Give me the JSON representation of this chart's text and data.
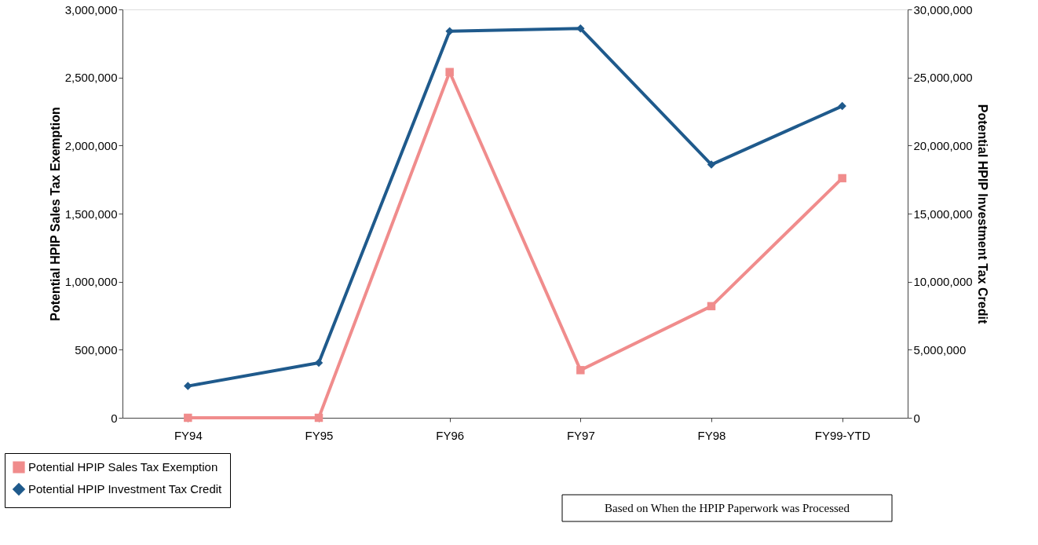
{
  "chart_data": {
    "type": "line",
    "categories": [
      "FY94",
      "FY95",
      "FY96",
      "FY97",
      "FY98",
      "FY99-YTD"
    ],
    "ylabel": "Potential HPIP Sales Tax Exemption",
    "y2label": "Potential HPIP Investment Tax Credit",
    "ylim": [
      0,
      3000000
    ],
    "yticks": [
      0,
      {
        "value": 500000,
        "label": "500,000"
      },
      {
        "value": 1000000,
        "label": "1,000,000"
      },
      {
        "value": 1500000,
        "label": "1,500,000"
      },
      {
        "value": 2000000,
        "label": "2,000,000"
      },
      {
        "value": 2500000,
        "label": "2,500,000"
      },
      {
        "value": 3000000,
        "label": "3,000,000"
      }
    ],
    "y2lim": [
      0,
      30000000
    ],
    "y2ticks": [
      0,
      {
        "value": 5000000,
        "label": "5,000,000"
      },
      {
        "value": 10000000,
        "label": "10,000,000"
      },
      {
        "value": 15000000,
        "label": "15,000,000"
      },
      {
        "value": 20000000,
        "label": "20,000,000"
      },
      {
        "value": 25000000,
        "label": "25,000,000"
      },
      {
        "value": 30000000,
        "label": "30,000,000"
      }
    ],
    "series": [
      {
        "name": "Potential HPIP Sales Tax Exemption",
        "color": "#f08c8c",
        "marker": "square",
        "values": [
          0,
          0,
          2540000,
          350000,
          820000,
          1760000
        ]
      },
      {
        "name": "Potential HPIP Investment Tax Credit",
        "color": "#1f5a8c",
        "marker": "diamond",
        "axis": "y2",
        "values": [
          2330000,
          4040000,
          28400000,
          28600000,
          18600000,
          22900000
        ]
      }
    ],
    "legend": "bottom left",
    "grid": false,
    "annotations": [
      "Based on When the HPIP Paperwork was Processed"
    ]
  }
}
